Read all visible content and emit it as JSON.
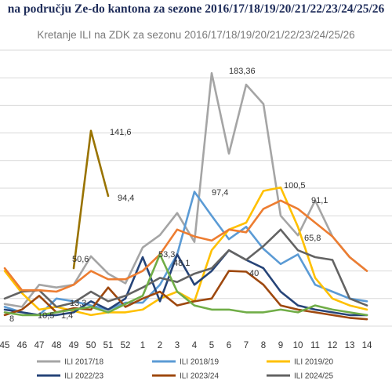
{
  "page_heading": "na području Ze-do kantona za sezone 2016/17/18/19/20/21/22/23/24/25/26",
  "chart_data": {
    "type": "line",
    "title": "Kretanje ILI na ZDK za sezonu 2016/17/18/19/20/21/22/23/24/25/26",
    "xlabel": "",
    "ylabel": "",
    "categories": [
      "45",
      "46",
      "47",
      "48",
      "49",
      "50",
      "51",
      "52",
      "1",
      "2",
      "3",
      "4",
      "5",
      "6",
      "7",
      "8",
      "9",
      "10",
      "11",
      "12",
      "13",
      "14"
    ],
    "ylim": [
      0,
      200
    ],
    "grid": true,
    "legend_position": "bottom",
    "series": [
      {
        "name": "ILI 2017/18",
        "color": "#a5a5a5",
        "values": [
          16,
          14,
          30,
          28,
          30,
          50.6,
          38,
          31,
          57,
          66,
          82,
          61,
          183.36,
          125,
          175,
          161,
          80,
          65.8,
          91.1,
          65,
          50,
          40
        ]
      },
      {
        "name": "ILI 2018/19",
        "color": "#5b9bd5",
        "values": [
          14,
          10,
          8,
          20,
          18,
          15,
          12,
          17,
          17,
          30,
          52,
          97.4,
          80,
          63,
          72,
          56,
          45,
          52,
          30,
          25,
          20,
          18
        ]
      },
      {
        "name": "ILI 2019/20",
        "color": "#ffc000",
        "values": [
          40,
          24,
          12,
          14,
          11,
          8,
          10,
          10,
          12,
          20,
          25,
          18,
          55,
          70,
          75,
          98,
          100.5,
          72,
          35,
          20,
          15,
          12
        ]
      },
      {
        "name": "ILI 2022/23",
        "color": "#264478",
        "values": [
          12,
          10,
          8,
          8,
          10,
          18,
          12,
          20,
          50,
          18,
          52,
          30,
          40,
          55,
          48,
          42,
          25,
          15,
          12,
          10,
          8,
          8
        ]
      },
      {
        "name": "ILI 2023/24",
        "color": "#9e480e",
        "values": [
          8,
          12,
          22,
          10,
          13,
          12,
          28,
          14,
          20,
          25,
          15,
          18,
          20,
          40,
          39.5,
          30,
          15,
          12,
          10,
          8,
          6,
          5
        ]
      },
      {
        "name": "ILI 2024/25",
        "color": "#636363",
        "values": [
          20,
          25,
          26,
          14,
          17,
          25,
          18,
          22,
          28,
          35,
          32,
          38,
          42,
          55,
          48,
          58,
          70,
          55,
          50,
          48,
          20,
          15
        ]
      },
      {
        "name": "",
        "color": "#ed7d31",
        "values": [
          42,
          26,
          26,
          25,
          30,
          40,
          34,
          34,
          40,
          52,
          70,
          65,
          62,
          70,
          68,
          85,
          91,
          85,
          75,
          65,
          50,
          40
        ]
      },
      {
        "name": "",
        "color": "#70ad47",
        "values": [
          10,
          8,
          8,
          10,
          12,
          14,
          10,
          16,
          22,
          52,
          25,
          15,
          12,
          12,
          10,
          10,
          12,
          10,
          15,
          12,
          10,
          8
        ]
      },
      {
        "name": "",
        "color": "#997300",
        "values": [
          null,
          null,
          null,
          null,
          42,
          141.6,
          94.4,
          null,
          null,
          null,
          null,
          null,
          null,
          null,
          null,
          null,
          null,
          null,
          null,
          null,
          null,
          null
        ]
      }
    ],
    "data_labels": [
      {
        "text": "183,36"
      },
      {
        "text": "141,6"
      },
      {
        "text": "100,5"
      },
      {
        "text": "97,4"
      },
      {
        "text": "94,4"
      },
      {
        "text": "91,1"
      },
      {
        "text": "65,8"
      },
      {
        "text": "53,3"
      },
      {
        "text": "50,6"
      },
      {
        "text": "48,1"
      },
      {
        "text": "40"
      },
      {
        "text": "13,3"
      },
      {
        "text": "10,5"
      },
      {
        "text": "1,4"
      },
      {
        "text": "8"
      }
    ]
  }
}
